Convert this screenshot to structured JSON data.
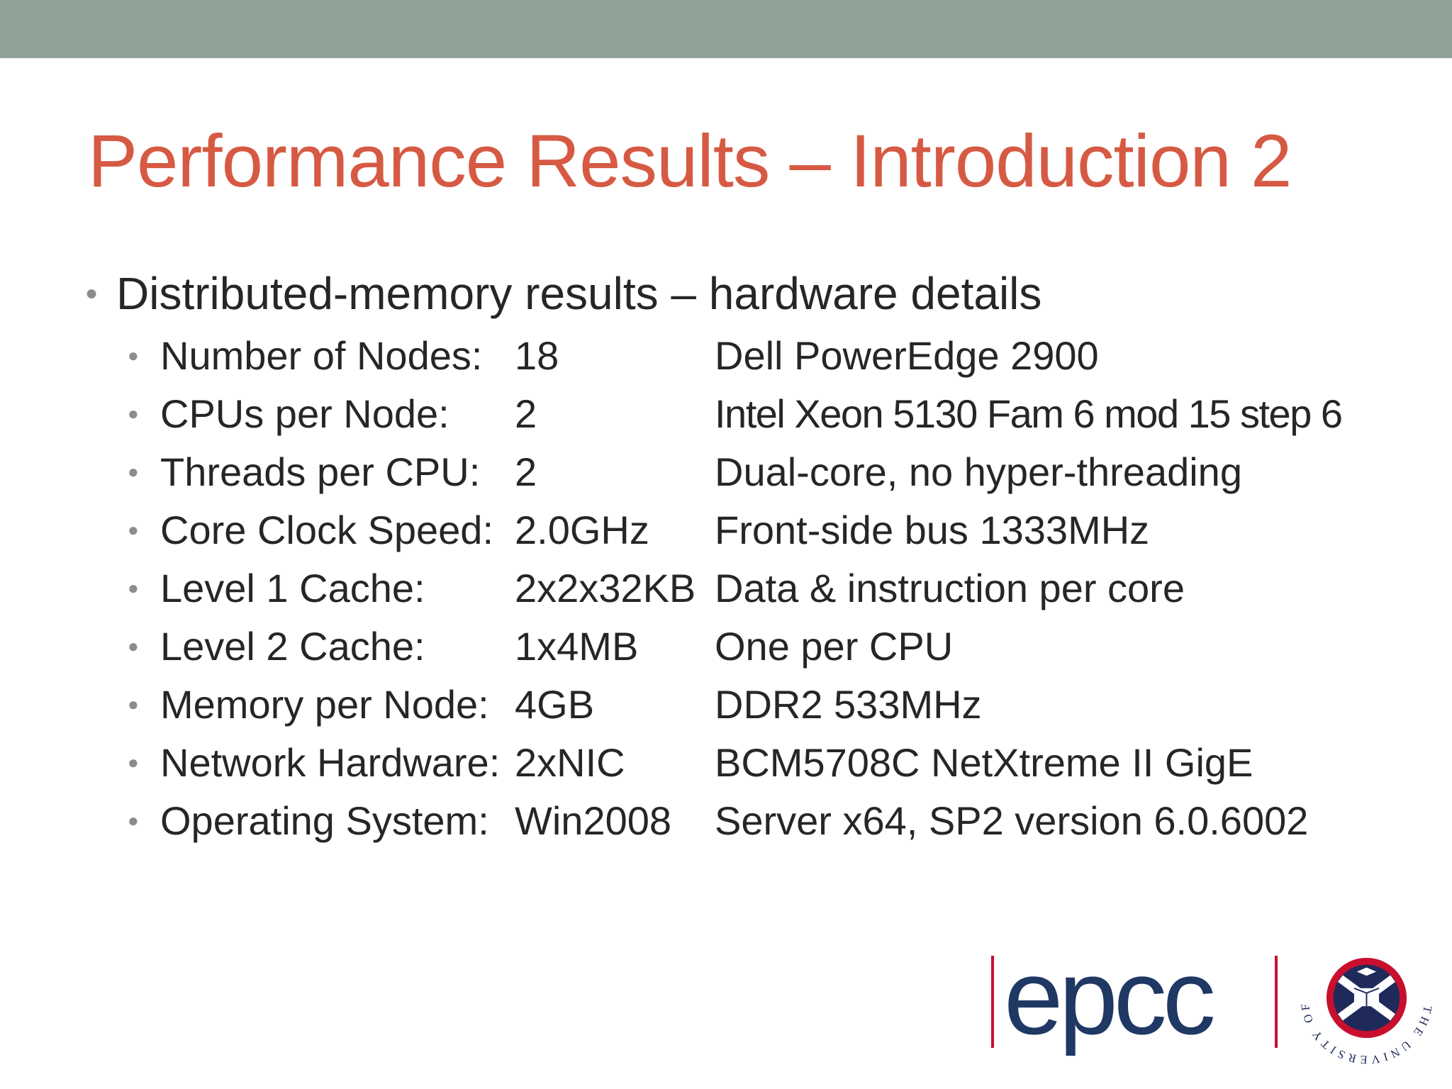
{
  "slide": {
    "title": "Performance Results – Introduction 2",
    "bullet": "Distributed-memory results – hardware details",
    "rows": [
      {
        "label": "Number of Nodes:",
        "value": "18",
        "desc": "Dell PowerEdge 2900"
      },
      {
        "label": "CPUs per Node:",
        "value": "2",
        "desc": "Intel Xeon 5130 Fam 6 mod 15 step 6"
      },
      {
        "label": "Threads per CPU:",
        "value": "2",
        "desc": "Dual-core, no hyper-threading"
      },
      {
        "label": "Core Clock Speed:",
        "value": "2.0GHz",
        "desc": "Front-side bus 1333MHz"
      },
      {
        "label": "Level 1 Cache:",
        "value": "2x2x32KB",
        "desc": "Data & instruction per core"
      },
      {
        "label": "Level 2 Cache:",
        "value": "1x4MB",
        "desc": "One per CPU"
      },
      {
        "label": "Memory per Node:",
        "value": "4GB",
        "desc": "DDR2 533MHz"
      },
      {
        "label": "Network Hardware:",
        "value": "2xNIC",
        "desc": "BCM5708C NetXtreme II GigE"
      },
      {
        "label": "Operating System:",
        "value": "Win2008",
        "desc": "Server x64, SP2 version 6.0.6002"
      }
    ]
  },
  "logos": {
    "epcc_text": "epcc",
    "crest_text": "THE UNIVERSITY OF EDINBURGH"
  },
  "colors": {
    "top_bar": "#91a399",
    "title": "#d65a43",
    "body_text": "#262626",
    "epcc_blue": "#1f3864",
    "epcc_bar_red": "#c8102e",
    "crest_red": "#c8102e",
    "crest_navy": "#1f2a5a"
  }
}
